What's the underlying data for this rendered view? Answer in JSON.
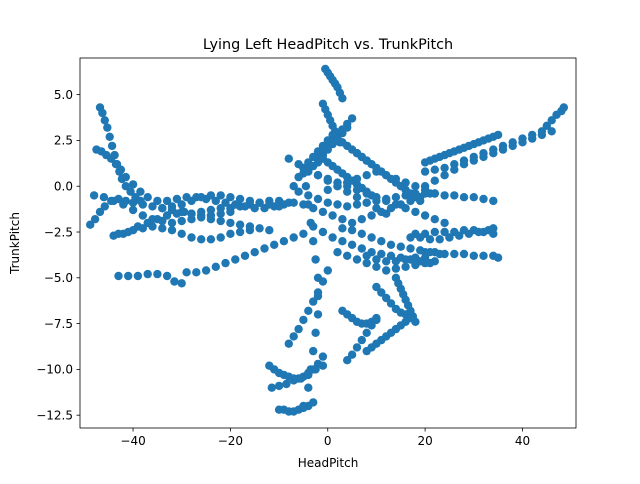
{
  "chart_data": {
    "type": "scatter",
    "title": "Lying Left HeadPitch vs. TrunkPitch",
    "xlabel": "HeadPitch",
    "ylabel": "TrunkPitch",
    "xlim": [
      -50.9,
      51.0
    ],
    "ylim": [
      -13.2,
      7.0
    ],
    "xticks": [
      -40,
      -20,
      0,
      20,
      40
    ],
    "xtick_labels": [
      "−40",
      "−20",
      "0",
      "20",
      "40"
    ],
    "yticks": [
      5.0,
      2.5,
      0.0,
      -2.5,
      -5.0,
      -7.5,
      -10.0,
      -12.5
    ],
    "ytick_labels": [
      "5.0",
      "2.5",
      "0.0",
      "−2.5",
      "−5.0",
      "−7.5",
      "−10.0",
      "−12.5"
    ],
    "grid": false,
    "marker_color": "#1f77b4",
    "series": [
      {
        "x": [
          -48.8,
          -47.8,
          -46.8,
          -45.8,
          -44.5,
          -43.0,
          -41.5,
          -40.0,
          -38.0,
          -36.0,
          -34.0,
          -32.0,
          -30.0,
          -28.0,
          -26.0,
          -24.0,
          -22.0,
          -20.0,
          -18.0,
          -16.0,
          -14.0,
          -12.0,
          -10.0,
          -8.0,
          -47.5,
          -46.5,
          -45.5,
          -44.5,
          -43.5,
          -42.5,
          -41.5,
          -40.0,
          -38.5,
          -37.0,
          -35.0,
          -33.0,
          -31.0,
          -29.0,
          -27.0,
          -25.0,
          -23.0,
          -21.0,
          -19.0,
          -17.0,
          -15.0,
          -13.0,
          -11.0,
          -9.0,
          -7.0,
          -46.8,
          -46.3,
          -45.8,
          -45.3,
          -44.8,
          -44.3,
          -43.8,
          -43.3,
          -42.8,
          -42.3,
          -41.5,
          -40.5,
          -39.5,
          -38.5,
          -48.0,
          -46.0,
          -44.0,
          -42.0,
          -40.0,
          -38.0,
          -36.0,
          -34.0,
          -32.0,
          -30.0,
          -28.0,
          -26.0,
          -24.0,
          -22.0,
          -20.0,
          -44.0,
          -42.0,
          -40.0,
          -38.0,
          -36.0,
          -34.0,
          -32.0,
          -30.0,
          -28.0,
          -26.0,
          -24.0,
          -22.0,
          -20.0,
          -18.0,
          -16.0,
          -43.0,
          -41.0,
          -39.0,
          -37.0,
          -35.0,
          -33.0,
          -31.0,
          -29.5,
          -28.0,
          -26.0,
          -24.0,
          -22.0,
          -20.0,
          -18.0,
          -16.0,
          -14.0,
          -12.0,
          -34.0,
          -32.0,
          -30.0,
          -28.0,
          -26.0,
          -24.0,
          -22.0,
          -20.0,
          -18.0,
          -16.0,
          -14.0,
          -12.0,
          -10.0,
          -43.0,
          -41.0,
          -39.0,
          -37.0,
          -35.0,
          -33.0,
          -31.5,
          -30.0,
          -29.0,
          -27.0,
          -25.0,
          -23.0,
          -21.0,
          -19.0,
          -17.0,
          -15.0,
          -13.0,
          -11.0,
          -9.0,
          -7.0,
          -5.0,
          -12.0,
          -11.0,
          -10.0,
          -9.0,
          -8.0,
          -7.0,
          -6.0,
          -5.0,
          -4.0,
          -3.0,
          -2.0,
          -1.0,
          -10.0,
          -9.0,
          -8.0,
          -7.0,
          -6.0,
          -5.0,
          -4.0,
          -3.0,
          -11.5,
          -10.0,
          -8.5,
          -7.0,
          -5.5,
          -4.0,
          -2.5,
          -1.0,
          -5.0,
          -4.0,
          -3.5,
          -3.0,
          -2.5,
          -2.0,
          -2.0,
          -2.0,
          -2.5,
          -3.0,
          -3.5,
          -4.0,
          -4.5,
          -5.0,
          -8.0,
          -7.0,
          -6.0,
          -5.0,
          -4.0,
          -3.0,
          -2.0,
          -1.0,
          0.0,
          -0.5,
          0.0,
          0.5,
          1.0,
          1.5,
          2.0,
          2.5,
          3.0,
          -1.0,
          -0.5,
          0.0,
          0.5,
          1.0,
          1.5,
          2.0,
          2.5,
          -1.0,
          0.0,
          1.0,
          2.0,
          3.0,
          4.0,
          5.0,
          -2.0,
          -1.0,
          0.0,
          1.0,
          2.0,
          3.0,
          4.0,
          -5.0,
          -4.0,
          -3.0,
          -2.0,
          -1.0,
          0.0,
          1.0,
          2.0,
          3.0,
          4.0,
          5.0,
          6.0,
          7.0,
          8.0,
          -6.0,
          -5.0,
          -4.0,
          -3.0,
          -2.0,
          -1.0,
          0.0,
          1.0,
          2.0,
          3.0,
          4.0,
          5.0,
          6.0,
          7.0,
          8.0,
          9.0,
          -7.0,
          -6.0,
          -4.0,
          -2.0,
          0.0,
          2.0,
          4.0,
          6.0,
          8.0,
          10.0,
          12.0,
          14.0,
          16.0,
          18.0,
          -5.0,
          -3.0,
          -1.0,
          1.0,
          3.0,
          5.0,
          7.0,
          9.0,
          11.0,
          13.0,
          15.0,
          17.0,
          19.0,
          21.0,
          -4.0,
          -2.0,
          0.0,
          2.0,
          4.0,
          6.0,
          8.0,
          10.0,
          12.0,
          14.0,
          16.0,
          18.0,
          20.0,
          22.0,
          24.0,
          -3.0,
          -1.0,
          1.0,
          3.0,
          5.0,
          7.0,
          9.0,
          11.0,
          13.0,
          15.0,
          17.0,
          19.0,
          21.0,
          0.0,
          2.0,
          4.0,
          6.0,
          8.0,
          10.0,
          12.0,
          14.0,
          16.0,
          18.0,
          20.0,
          22.0,
          6.0,
          7.0,
          8.0,
          9.0,
          10.0,
          11.0,
          12.0,
          13.0,
          14.0,
          15.0,
          16.0,
          17.0,
          18.0,
          19.0,
          20.0,
          21.0,
          22.0,
          23.0,
          24.0,
          25.0,
          26.0,
          27.0,
          28.0,
          29.0,
          30.0,
          31.0,
          32.0,
          33.0,
          34.0,
          35.0,
          20.0,
          22.0,
          24.0,
          26.0,
          28.0,
          30.0,
          32.0,
          34.0,
          36.0,
          38.0,
          40.0,
          42.0,
          44.0,
          45.0,
          46.0,
          47.0,
          48.0,
          48.5,
          20.0,
          22.0,
          24.0,
          26.0,
          28.0,
          30.0,
          32.0,
          34.0,
          36.0,
          38.0,
          40.0,
          42.0,
          44.0,
          46.0,
          18.0,
          20.0,
          22.0,
          24.0,
          26.0,
          28.0,
          30.0,
          32.0,
          34.0,
          18.0,
          20.0,
          22.0,
          24.0,
          26.0,
          28.0,
          30.0,
          32.0,
          34.0,
          20.0,
          22.0,
          24.0,
          26.0,
          28.0,
          30.0,
          32.0,
          34.0,
          35.0,
          17.0,
          19.0,
          21.0,
          23.0,
          25.0,
          27.0,
          29.0,
          31.0,
          33.0,
          34.0,
          8.0,
          10.0,
          12.0,
          14.0,
          16.0,
          18.0,
          20.0,
          14.0,
          14.5,
          15.0,
          15.5,
          16.0,
          16.5,
          17.0,
          17.5,
          18.0,
          10.0,
          11.0,
          12.0,
          13.0,
          14.0,
          15.0,
          16.0,
          17.0,
          3.0,
          4.0,
          5.0,
          6.0,
          7.0,
          8.0,
          9.0,
          10.0,
          4.0,
          5.0,
          6.0,
          7.0,
          8.0,
          9.0,
          10.0,
          8.0,
          9.0,
          10.0,
          11.0,
          12.0,
          13.0,
          14.0,
          15.0,
          16.0,
          2.0,
          4.0,
          6.0,
          8.0,
          10.0,
          12.0,
          14.0,
          16.0,
          18.0,
          20.0,
          22.0,
          3.0,
          5.0,
          7.0,
          9.0,
          11.0,
          13.0,
          15.0,
          17.0,
          19.0,
          21.0,
          23.0,
          -8.0,
          -6.0,
          -4.0,
          -2.0,
          0.0,
          2.0,
          4.0,
          6.0,
          8.0,
          10.0,
          12.0
        ],
        "y": [
          -2.1,
          -1.8,
          -1.4,
          -1.1,
          -0.8,
          -0.7,
          -0.8,
          -0.9,
          -1.0,
          -1.1,
          -1.2,
          -1.3,
          -1.4,
          -1.5,
          -1.4,
          -1.3,
          -1.2,
          -1.2,
          -1.1,
          -1.0,
          -0.9,
          -0.8,
          -0.8,
          -0.9,
          2.0,
          1.9,
          1.7,
          1.5,
          1.2,
          0.9,
          0.5,
          0.1,
          -0.3,
          -0.6,
          -0.8,
          -0.8,
          -0.7,
          -0.6,
          -0.6,
          -0.7,
          -0.8,
          -0.9,
          -1.0,
          -1.1,
          -1.2,
          -1.2,
          -1.1,
          -1.0,
          -0.9,
          4.3,
          4.0,
          3.6,
          3.2,
          2.7,
          2.2,
          1.7,
          1.2,
          0.8,
          0.4,
          0.0,
          -0.3,
          -0.6,
          -0.8,
          -0.5,
          -0.6,
          -0.8,
          -1.0,
          -1.3,
          -1.6,
          -1.8,
          -1.9,
          -2.0,
          -1.9,
          -1.8,
          -1.7,
          -1.6,
          -1.5,
          -1.4,
          -2.7,
          -2.6,
          -2.4,
          -2.3,
          -2.2,
          -2.3,
          -2.4,
          -2.6,
          -2.8,
          -2.9,
          -2.9,
          -2.8,
          -2.6,
          -2.5,
          -2.4,
          -2.6,
          -2.5,
          -2.2,
          -2.0,
          -1.8,
          -1.6,
          -1.5,
          -1.4,
          -1.5,
          -1.6,
          -1.8,
          -1.9,
          -2.0,
          -2.1,
          -2.2,
          -2.3,
          -2.4,
          -1.2,
          -1.1,
          -1.0,
          -0.8,
          -0.6,
          -0.5,
          -0.5,
          -0.6,
          -0.7,
          -0.8,
          -0.9,
          -1.0,
          -1.1,
          -4.9,
          -4.9,
          -4.9,
          -4.8,
          -4.8,
          -4.9,
          -5.2,
          -5.3,
          -4.7,
          -4.7,
          -4.6,
          -4.4,
          -4.2,
          -4.0,
          -3.8,
          -3.6,
          -3.4,
          -3.2,
          -3.0,
          -2.8,
          -2.6,
          -9.8,
          -10.0,
          -10.2,
          -10.3,
          -10.4,
          -10.5,
          -10.5,
          -10.4,
          -10.3,
          -10.0,
          -9.7,
          -9.3,
          -12.2,
          -12.2,
          -12.3,
          -12.3,
          -12.2,
          -12.1,
          -12.0,
          -11.8,
          -11.0,
          -10.9,
          -10.8,
          -10.6,
          -10.5,
          -10.2,
          -10.0,
          -9.8,
          -12.0,
          -11.0,
          -10.0,
          -9.0,
          -8.0,
          -7.0,
          -6.0,
          -5.0,
          -4.0,
          -3.0,
          -2.0,
          -1.0,
          0.0,
          1.0,
          -8.6,
          -8.2,
          -7.8,
          -7.3,
          -6.8,
          -6.3,
          -5.8,
          -5.2,
          -4.6,
          6.4,
          6.2,
          6.0,
          5.8,
          5.6,
          5.4,
          5.1,
          4.8,
          4.5,
          4.2,
          3.9,
          3.6,
          3.3,
          3.0,
          2.7,
          2.4,
          2.0,
          2.2,
          2.5,
          2.8,
          3.1,
          3.4,
          3.7,
          1.5,
          1.7,
          2.0,
          2.3,
          2.6,
          2.9,
          3.2,
          1.0,
          1.3,
          1.6,
          1.9,
          2.2,
          2.5,
          2.8,
          2.6,
          2.4,
          2.2,
          2.0,
          1.8,
          1.6,
          1.4,
          0.5,
          0.7,
          0.9,
          1.1,
          1.3,
          1.5,
          1.3,
          1.1,
          0.9,
          0.7,
          0.5,
          0.3,
          0.1,
          -0.1,
          -0.3,
          -0.5,
          0.0,
          -0.3,
          -0.5,
          -0.7,
          -0.9,
          -1.0,
          -1.1,
          -1.0,
          -0.9,
          -0.8,
          -0.7,
          -0.6,
          -0.5,
          -0.4,
          -1.0,
          -1.2,
          -1.4,
          -1.6,
          -1.8,
          -2.0,
          -1.8,
          -1.6,
          -1.4,
          -1.2,
          -1.0,
          -0.8,
          -0.6,
          -0.4,
          0.8,
          0.6,
          0.4,
          0.2,
          0.0,
          -0.2,
          -0.4,
          -0.6,
          -0.8,
          -1.0,
          -1.2,
          -1.4,
          -1.6,
          -1.8,
          -2.0,
          -2.2,
          -2.5,
          -2.8,
          -3.0,
          -3.2,
          -3.4,
          -3.6,
          -3.7,
          -3.8,
          -3.9,
          -4.0,
          -4.1,
          -4.2,
          -0.2,
          0.0,
          0.2,
          0.4,
          0.6,
          0.8,
          0.6,
          0.4,
          0.2,
          0.0,
          -0.2,
          -0.4,
          1.8,
          1.6,
          1.4,
          1.2,
          1.0,
          0.8,
          0.6,
          0.4,
          0.2,
          0.0,
          -0.2,
          -0.4,
          -0.6,
          -0.8,
          1.3,
          1.4,
          1.5,
          1.6,
          1.7,
          1.8,
          1.9,
          2.0,
          2.1,
          2.2,
          2.3,
          2.4,
          2.5,
          2.6,
          2.7,
          2.8,
          0.8,
          0.9,
          1.0,
          1.2,
          1.4,
          1.6,
          1.8,
          2.0,
          2.2,
          2.4,
          2.6,
          2.8,
          3.0,
          3.3,
          3.6,
          3.9,
          4.1,
          4.3,
          0.0,
          0.3,
          0.6,
          0.9,
          1.2,
          1.4,
          1.6,
          1.8,
          2.0,
          2.2,
          2.4,
          2.6,
          2.8,
          3.0,
          -0.5,
          -0.4,
          -0.4,
          -0.5,
          -0.5,
          -0.6,
          -0.6,
          -0.7,
          -0.8,
          -2.6,
          -2.6,
          -2.5,
          -2.5,
          -2.5,
          -2.4,
          -2.4,
          -2.5,
          -2.6,
          -3.6,
          -3.6,
          -3.7,
          -3.7,
          -3.7,
          -3.8,
          -3.8,
          -3.8,
          -3.9,
          -2.8,
          -2.8,
          -2.9,
          -2.9,
          -2.8,
          -2.7,
          -2.6,
          -2.5,
          -2.4,
          -2.3,
          -3.8,
          -4.0,
          -4.1,
          -4.1,
          -4.0,
          -3.9,
          -3.9,
          -5.0,
          -5.3,
          -5.6,
          -5.9,
          -6.2,
          -6.5,
          -6.8,
          -7.1,
          -7.4,
          -5.5,
          -5.8,
          -6.1,
          -6.4,
          -6.7,
          -6.9,
          -7.0,
          -7.2,
          -6.8,
          -7.0,
          -7.2,
          -7.4,
          -7.5,
          -7.5,
          -7.4,
          -7.3,
          -9.5,
          -9.2,
          -8.8,
          -8.4,
          -8.0,
          -7.6,
          -7.2,
          -9.0,
          -8.8,
          -8.6,
          -8.4,
          -8.2,
          -8.0,
          -7.8,
          -7.6,
          -7.4,
          -3.6,
          -3.8,
          -4.0,
          -4.2,
          -4.4,
          -4.6,
          -4.5,
          -4.4,
          -4.3,
          -4.2,
          -4.1,
          -2.3,
          -2.4,
          -2.6,
          -2.8,
          -3.0,
          -3.2,
          -3.3,
          -3.4,
          -3.5,
          -3.6,
          -3.7,
          1.5,
          1.2,
          0.9,
          0.6,
          0.3,
          0.0,
          -0.3,
          -0.6,
          -0.9,
          -1.2,
          -1.5
        ]
      }
    ]
  }
}
